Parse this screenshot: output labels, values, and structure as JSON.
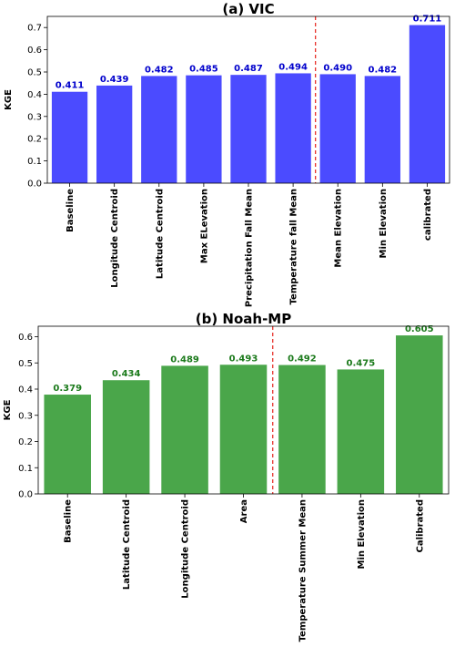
{
  "chart_data": [
    {
      "type": "bar",
      "title": "(a) VIC",
      "xlabel": "",
      "ylabel": "KGE",
      "ylim": [
        0,
        0.75
      ],
      "yticks": [
        "0.0",
        "0.1",
        "0.2",
        "0.3",
        "0.4",
        "0.5",
        "0.6",
        "0.7"
      ],
      "categories": [
        "Baseline",
        "Longitude Centroid",
        "Latitude Centroid",
        "Max ELevation",
        "Precipitation Fall Mean",
        "Temperature fall Mean",
        "Mean Elevation",
        "Min Elevation",
        "calibrated"
      ],
      "values": [
        0.411,
        0.439,
        0.482,
        0.485,
        0.487,
        0.494,
        0.49,
        0.482,
        0.711
      ],
      "value_labels": [
        "0.411",
        "0.439",
        "0.482",
        "0.485",
        "0.487",
        "0.494",
        "0.490",
        "0.482",
        "0.711"
      ],
      "bar_color": "#4b4bff",
      "label_color": "#0000cc",
      "divider_after_index": 5,
      "divider_color": "#e8312b",
      "grid": false
    },
    {
      "type": "bar",
      "title": "(b) Noah-MP",
      "xlabel": "",
      "ylabel": "KGE",
      "ylim": [
        0,
        0.64
      ],
      "yticks": [
        "0.0",
        "0.1",
        "0.2",
        "0.3",
        "0.4",
        "0.5",
        "0.6"
      ],
      "categories": [
        "Baseline",
        "Latitude Centroid",
        "Longitude Centroid",
        "Area",
        "Temperature Summer Mean",
        "Min Elevation",
        "Calibrated"
      ],
      "values": [
        0.379,
        0.434,
        0.489,
        0.493,
        0.492,
        0.475,
        0.605
      ],
      "value_labels": [
        "0.379",
        "0.434",
        "0.489",
        "0.493",
        "0.492",
        "0.475",
        "0.605"
      ],
      "bar_color": "#4aa64a",
      "label_color": "#1b7a1b",
      "divider_after_index": 3,
      "divider_color": "#e8312b",
      "grid": false
    }
  ]
}
